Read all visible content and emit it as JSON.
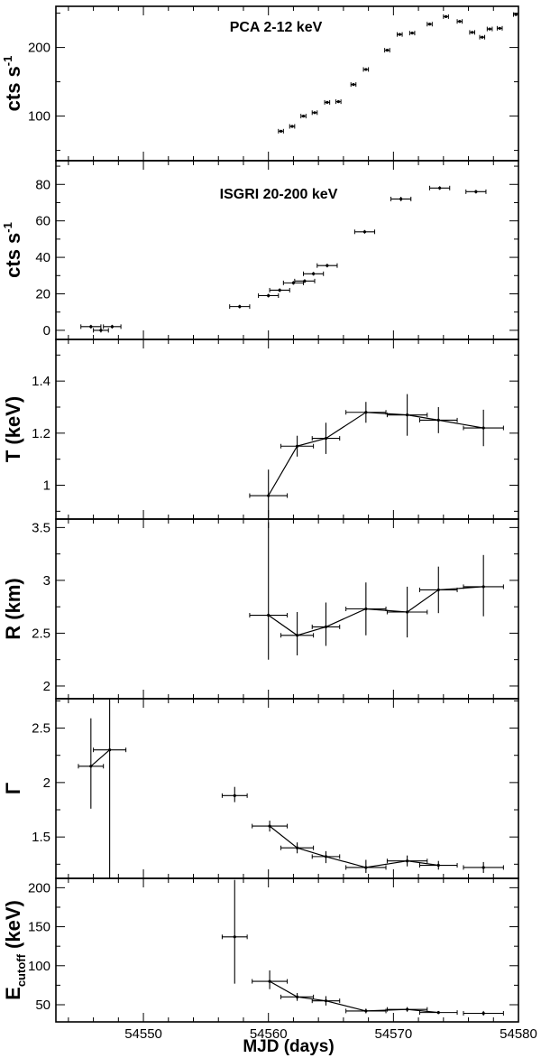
{
  "figure": {
    "xlabel": "MJD (days)",
    "xlim": [
      54543,
      54580
    ],
    "x_ticks": [
      54550,
      54560,
      54570,
      54580
    ]
  },
  "chart_data": [
    {
      "type": "scatter",
      "title": "PCA 2-12 keV",
      "ylabel": "cts s",
      "ylabel_sup": "-1",
      "ylim": [
        35,
        260
      ],
      "y_ticks": [
        100,
        200
      ],
      "connected": false,
      "points": [
        {
          "x": 54561.0,
          "y": 78,
          "xerr": 0.2,
          "yerr": 1.5
        },
        {
          "x": 54561.9,
          "y": 85,
          "xerr": 0.2,
          "yerr": 1.5
        },
        {
          "x": 54562.8,
          "y": 100,
          "xerr": 0.2,
          "yerr": 1.5
        },
        {
          "x": 54563.7,
          "y": 105,
          "xerr": 0.2,
          "yerr": 1.5
        },
        {
          "x": 54564.7,
          "y": 120,
          "xerr": 0.2,
          "yerr": 1.5
        },
        {
          "x": 54565.6,
          "y": 121,
          "xerr": 0.2,
          "yerr": 1.5
        },
        {
          "x": 54566.8,
          "y": 146,
          "xerr": 0.2,
          "yerr": 1.5
        },
        {
          "x": 54567.8,
          "y": 168,
          "xerr": 0.2,
          "yerr": 1.5
        },
        {
          "x": 54569.5,
          "y": 196,
          "xerr": 0.2,
          "yerr": 1.5
        },
        {
          "x": 54570.5,
          "y": 219,
          "xerr": 0.2,
          "yerr": 1.5
        },
        {
          "x": 54571.5,
          "y": 221,
          "xerr": 0.2,
          "yerr": 1.5
        },
        {
          "x": 54572.9,
          "y": 234,
          "xerr": 0.2,
          "yerr": 1.5
        },
        {
          "x": 54574.2,
          "y": 245,
          "xerr": 0.2,
          "yerr": 1.5
        },
        {
          "x": 54575.3,
          "y": 238,
          "xerr": 0.2,
          "yerr": 1.5
        },
        {
          "x": 54576.3,
          "y": 222,
          "xerr": 0.2,
          "yerr": 1.5
        },
        {
          "x": 54577.1,
          "y": 215,
          "xerr": 0.2,
          "yerr": 1.5
        },
        {
          "x": 54577.7,
          "y": 227,
          "xerr": 0.2,
          "yerr": 1.5
        },
        {
          "x": 54578.5,
          "y": 228,
          "xerr": 0.2,
          "yerr": 1.5
        },
        {
          "x": 54579.8,
          "y": 248,
          "xerr": 0.2,
          "yerr": 1.5
        }
      ]
    },
    {
      "type": "scatter",
      "title": "ISGRI 20-200 keV",
      "ylabel": "cts s",
      "ylabel_sup": "-1",
      "ylim": [
        -5,
        93
      ],
      "y_ticks": [
        0,
        20,
        40,
        60,
        80
      ],
      "connected": false,
      "points": [
        {
          "x": 54545.8,
          "y": 2,
          "xerr": 0.8,
          "yerr": 1.0
        },
        {
          "x": 54546.6,
          "y": 0,
          "xerr": 0.6,
          "yerr": 1.2
        },
        {
          "x": 54547.5,
          "y": 2,
          "xerr": 0.7,
          "yerr": 1.0
        },
        {
          "x": 54557.7,
          "y": 13,
          "xerr": 0.8,
          "yerr": 1.0
        },
        {
          "x": 54560.0,
          "y": 19,
          "xerr": 0.8,
          "yerr": 1.0
        },
        {
          "x": 54560.9,
          "y": 22,
          "xerr": 0.8,
          "yerr": 1.0
        },
        {
          "x": 54562.0,
          "y": 26,
          "xerr": 0.8,
          "yerr": 1.0
        },
        {
          "x": 54562.9,
          "y": 27,
          "xerr": 0.8,
          "yerr": 1.0
        },
        {
          "x": 54563.6,
          "y": 31,
          "xerr": 0.8,
          "yerr": 1.0
        },
        {
          "x": 54564.7,
          "y": 35.5,
          "xerr": 0.8,
          "yerr": 1.0
        },
        {
          "x": 54567.7,
          "y": 54,
          "xerr": 0.8,
          "yerr": 1.0
        },
        {
          "x": 54570.6,
          "y": 72,
          "xerr": 0.8,
          "yerr": 1.2
        },
        {
          "x": 54573.7,
          "y": 78,
          "xerr": 0.8,
          "yerr": 1.0
        },
        {
          "x": 54576.6,
          "y": 76,
          "xerr": 0.8,
          "yerr": 1.0
        }
      ]
    },
    {
      "type": "line",
      "title": "",
      "ylabel": "T (keV)",
      "ylim": [
        0.87,
        1.56
      ],
      "y_ticks": [
        1,
        1.2,
        1.4
      ],
      "connected": true,
      "points": [
        {
          "x": 54560.0,
          "y": 0.96,
          "xerr": 1.5,
          "yerr": 0.1
        },
        {
          "x": 54562.3,
          "y": 1.15,
          "xerr": 1.3,
          "yerr": 0.04
        },
        {
          "x": 54564.6,
          "y": 1.18,
          "xerr": 1.1,
          "yerr": 0.06
        },
        {
          "x": 54567.8,
          "y": 1.28,
          "xerr": 1.6,
          "yerr": 0.04
        },
        {
          "x": 54571.1,
          "y": 1.27,
          "xerr": 1.6,
          "yerr": 0.08
        },
        {
          "x": 54573.6,
          "y": 1.25,
          "xerr": 1.5,
          "yerr": 0.05
        },
        {
          "x": 54577.2,
          "y": 1.22,
          "xerr": 1.6,
          "yerr": 0.07
        }
      ]
    },
    {
      "type": "line",
      "title": "",
      "ylabel": "R (km)",
      "ylim": [
        1.88,
        3.58
      ],
      "y_ticks": [
        2,
        2.5,
        3,
        3.5
      ],
      "connected": true,
      "points": [
        {
          "x": 54560.0,
          "y": 2.67,
          "xerr": 1.5,
          "yerr_lo": 0.42,
          "yerr_hi": 0.88
        },
        {
          "x": 54562.3,
          "y": 2.48,
          "xerr": 1.3,
          "yerr_lo": 0.19,
          "yerr_hi": 0.22
        },
        {
          "x": 54564.6,
          "y": 2.56,
          "xerr": 1.1,
          "yerr_lo": 0.18,
          "yerr_hi": 0.23
        },
        {
          "x": 54567.8,
          "y": 2.73,
          "xerr": 1.6,
          "yerr_lo": 0.25,
          "yerr_hi": 0.25
        },
        {
          "x": 54571.1,
          "y": 2.7,
          "xerr": 1.6,
          "yerr_lo": 0.24,
          "yerr_hi": 0.24
        },
        {
          "x": 54573.6,
          "y": 2.91,
          "xerr": 1.5,
          "yerr_lo": 0.22,
          "yerr_hi": 0.22
        },
        {
          "x": 54577.2,
          "y": 2.94,
          "xerr": 1.6,
          "yerr_lo": 0.28,
          "yerr_hi": 0.3
        }
      ]
    },
    {
      "type": "line",
      "title": "",
      "ylabel": "Γ",
      "ylim": [
        1.12,
        2.77
      ],
      "y_ticks": [
        1.5,
        2,
        2.5
      ],
      "connected": true,
      "connect_ranges": [
        [
          0,
          1
        ],
        [
          3,
          8
        ]
      ],
      "points": [
        {
          "x": 54545.8,
          "y": 2.15,
          "xerr": 1.0,
          "yerr_lo": 0.39,
          "yerr_hi": 0.44
        },
        {
          "x": 54547.3,
          "y": 2.3,
          "xerr": 1.3,
          "yerr_lo": 1.25,
          "yerr_hi": 0.5
        },
        {
          "x": 54557.3,
          "y": 1.88,
          "xerr": 1.0,
          "yerr_lo": 0.06,
          "yerr_hi": 0.08
        },
        {
          "x": 54560.1,
          "y": 1.6,
          "xerr": 1.4,
          "yerr_lo": 0.05,
          "yerr_hi": 0.05
        },
        {
          "x": 54562.3,
          "y": 1.4,
          "xerr": 1.3,
          "yerr_lo": 0.05,
          "yerr_hi": 0.05
        },
        {
          "x": 54564.6,
          "y": 1.32,
          "xerr": 1.1,
          "yerr_lo": 0.06,
          "yerr_hi": 0.05
        },
        {
          "x": 54567.8,
          "y": 1.22,
          "xerr": 1.6,
          "yerr_lo": 0.05,
          "yerr_hi": 0.07
        },
        {
          "x": 54571.1,
          "y": 1.28,
          "xerr": 1.6,
          "yerr_lo": 0.05,
          "yerr_hi": 0.05
        },
        {
          "x": 54573.6,
          "y": 1.24,
          "xerr": 1.5,
          "yerr_lo": 0.04,
          "yerr_hi": 0.04
        },
        {
          "x": 54577.2,
          "y": 1.22,
          "xerr": 1.6,
          "yerr_lo": 0.05,
          "yerr_hi": 0.05
        }
      ]
    },
    {
      "type": "line",
      "title": "",
      "ylabel": "E",
      "ylabel_sub": "cutoff",
      "ylabel_tail": " (keV)",
      "ylim": [
        28,
        212
      ],
      "y_ticks": [
        50,
        100,
        150,
        200
      ],
      "connected": true,
      "connect_ranges": [
        [
          1,
          6
        ]
      ],
      "points": [
        {
          "x": 54557.3,
          "y": 137,
          "xerr": 1.0,
          "yerr_lo": 60,
          "yerr_hi": 73
        },
        {
          "x": 54560.1,
          "y": 80,
          "xerr": 1.4,
          "yerr_lo": 10,
          "yerr_hi": 14
        },
        {
          "x": 54562.3,
          "y": 60,
          "xerr": 1.3,
          "yerr_lo": 5,
          "yerr_hi": 5
        },
        {
          "x": 54564.6,
          "y": 55,
          "xerr": 1.1,
          "yerr_lo": 6,
          "yerr_hi": 6
        },
        {
          "x": 54567.8,
          "y": 42,
          "xerr": 1.6,
          "yerr_lo": 3,
          "yerr_hi": 3
        },
        {
          "x": 54571.1,
          "y": 44,
          "xerr": 1.6,
          "yerr_lo": 3,
          "yerr_hi": 3
        },
        {
          "x": 54573.6,
          "y": 40,
          "xerr": 1.5,
          "yerr_lo": 2,
          "yerr_hi": 2
        },
        {
          "x": 54577.2,
          "y": 39,
          "xerr": 1.6,
          "yerr_lo": 3,
          "yerr_hi": 3
        }
      ]
    }
  ]
}
